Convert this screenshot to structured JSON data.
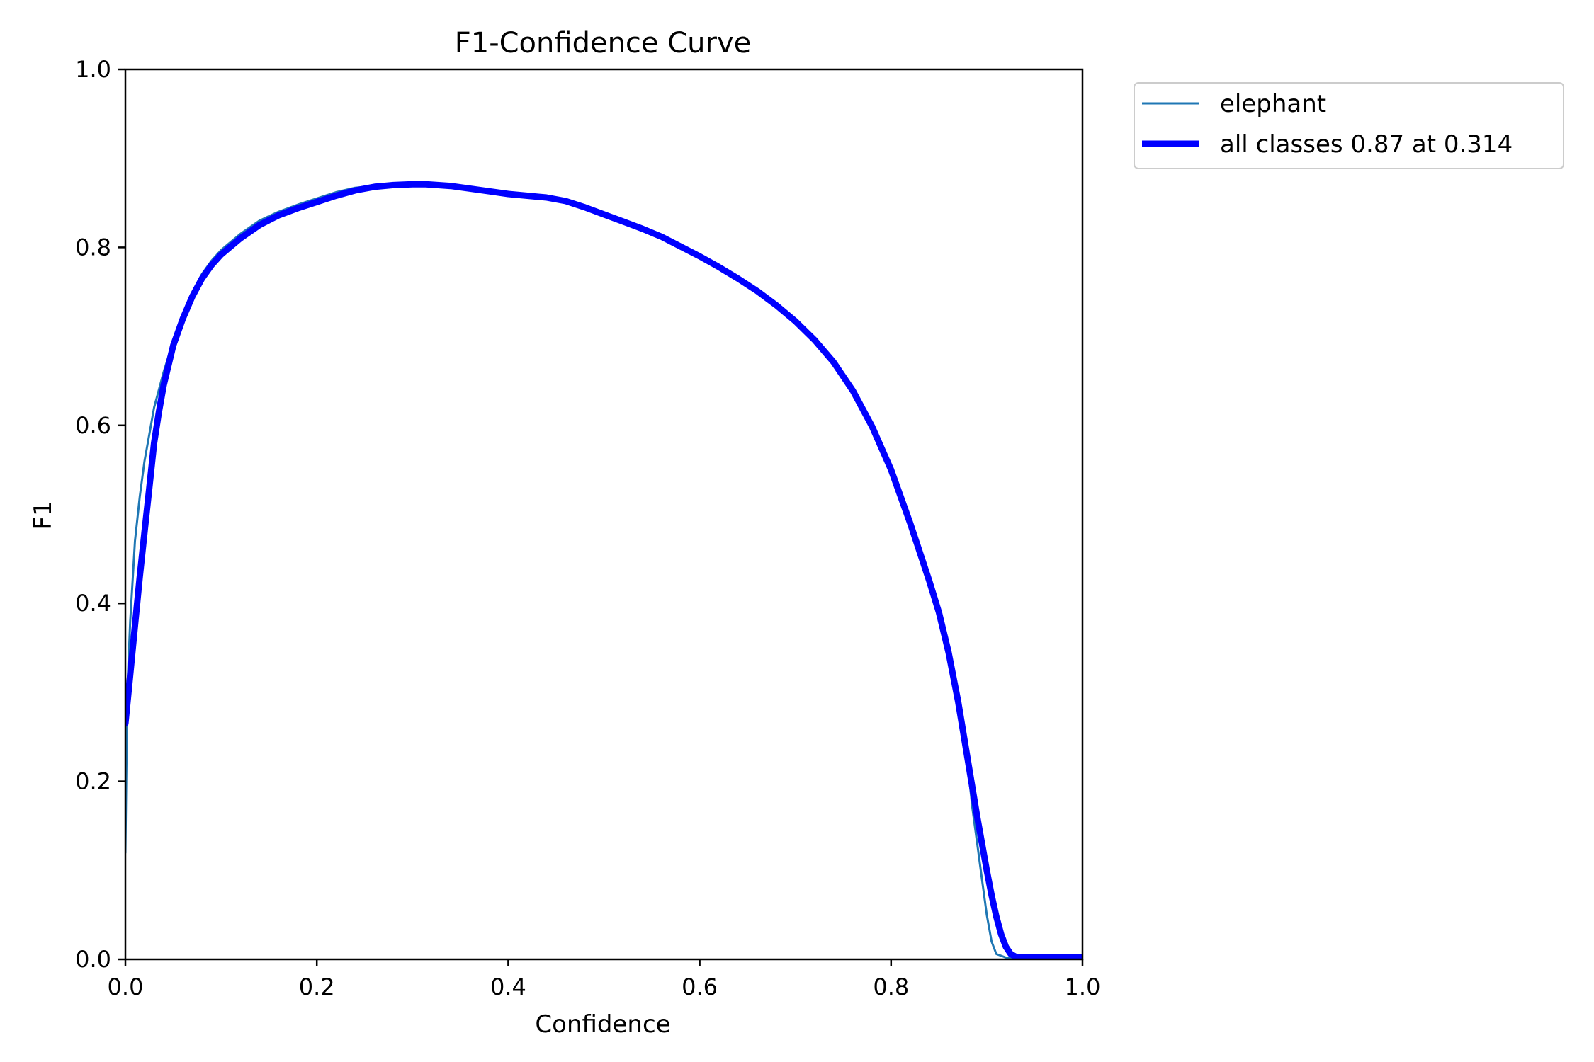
{
  "chart_data": {
    "type": "line",
    "title": "F1-Confidence Curve",
    "xlabel": "Confidence",
    "ylabel": "F1",
    "xlim": [
      0.0,
      1.0
    ],
    "ylim": [
      0.0,
      1.0
    ],
    "xticks": [
      "0.0",
      "0.2",
      "0.4",
      "0.6",
      "0.8",
      "1.0"
    ],
    "yticks": [
      "0.0",
      "0.2",
      "0.4",
      "0.6",
      "0.8",
      "1.0"
    ],
    "grid": false,
    "legend_placement": "outside-top-right",
    "series": [
      {
        "name": "elephant",
        "color": "#1f77b4",
        "style": "thin",
        "x": [
          0.0,
          0.002,
          0.005,
          0.01,
          0.015,
          0.02,
          0.025,
          0.03,
          0.035,
          0.04,
          0.05,
          0.06,
          0.07,
          0.08,
          0.09,
          0.1,
          0.12,
          0.14,
          0.16,
          0.18,
          0.2,
          0.22,
          0.24,
          0.26,
          0.28,
          0.3,
          0.314,
          0.34,
          0.36,
          0.38,
          0.4,
          0.42,
          0.44,
          0.46,
          0.48,
          0.5,
          0.52,
          0.54,
          0.56,
          0.58,
          0.6,
          0.62,
          0.64,
          0.66,
          0.68,
          0.7,
          0.72,
          0.74,
          0.76,
          0.78,
          0.8,
          0.82,
          0.84,
          0.85,
          0.86,
          0.87,
          0.875,
          0.88,
          0.885,
          0.89,
          0.895,
          0.9,
          0.905,
          0.91,
          0.915,
          0.92,
          0.925,
          0.93,
          0.94,
          0.96,
          0.98,
          1.0
        ],
        "y": [
          0.12,
          0.3,
          0.38,
          0.47,
          0.52,
          0.56,
          0.59,
          0.62,
          0.64,
          0.66,
          0.695,
          0.725,
          0.75,
          0.77,
          0.785,
          0.797,
          0.815,
          0.83,
          0.84,
          0.848,
          0.855,
          0.862,
          0.867,
          0.869,
          0.871,
          0.872,
          0.872,
          0.87,
          0.867,
          0.864,
          0.861,
          0.859,
          0.857,
          0.853,
          0.846,
          0.838,
          0.83,
          0.822,
          0.813,
          0.802,
          0.791,
          0.779,
          0.766,
          0.752,
          0.736,
          0.718,
          0.697,
          0.672,
          0.64,
          0.6,
          0.55,
          0.49,
          0.425,
          0.39,
          0.35,
          0.3,
          0.265,
          0.22,
          0.17,
          0.13,
          0.09,
          0.05,
          0.02,
          0.006,
          0.004,
          0.002,
          0.001,
          0.001,
          0.001,
          0.001,
          0.001,
          0.001
        ]
      },
      {
        "name": "all classes 0.87 at 0.314",
        "color": "#0000ff",
        "style": "thick",
        "x": [
          0.0,
          0.005,
          0.01,
          0.015,
          0.02,
          0.025,
          0.03,
          0.035,
          0.04,
          0.05,
          0.06,
          0.07,
          0.08,
          0.09,
          0.1,
          0.12,
          0.14,
          0.16,
          0.18,
          0.2,
          0.22,
          0.24,
          0.26,
          0.28,
          0.3,
          0.314,
          0.34,
          0.36,
          0.38,
          0.4,
          0.42,
          0.44,
          0.46,
          0.48,
          0.5,
          0.52,
          0.54,
          0.56,
          0.58,
          0.6,
          0.62,
          0.64,
          0.66,
          0.68,
          0.7,
          0.72,
          0.74,
          0.76,
          0.78,
          0.8,
          0.82,
          0.84,
          0.85,
          0.86,
          0.87,
          0.88,
          0.89,
          0.9,
          0.905,
          0.91,
          0.915,
          0.92,
          0.925,
          0.93,
          0.94,
          0.96,
          0.98,
          1.0
        ],
        "y": [
          0.265,
          0.32,
          0.375,
          0.43,
          0.48,
          0.53,
          0.58,
          0.615,
          0.645,
          0.69,
          0.72,
          0.745,
          0.765,
          0.78,
          0.792,
          0.81,
          0.825,
          0.836,
          0.844,
          0.851,
          0.858,
          0.864,
          0.868,
          0.87,
          0.871,
          0.871,
          0.869,
          0.866,
          0.863,
          0.86,
          0.858,
          0.856,
          0.852,
          0.845,
          0.837,
          0.829,
          0.821,
          0.812,
          0.801,
          0.79,
          0.778,
          0.765,
          0.751,
          0.735,
          0.717,
          0.696,
          0.671,
          0.639,
          0.599,
          0.55,
          0.49,
          0.425,
          0.39,
          0.345,
          0.29,
          0.225,
          0.16,
          0.1,
          0.072,
          0.048,
          0.028,
          0.014,
          0.006,
          0.003,
          0.002,
          0.002,
          0.002,
          0.002
        ]
      }
    ]
  }
}
